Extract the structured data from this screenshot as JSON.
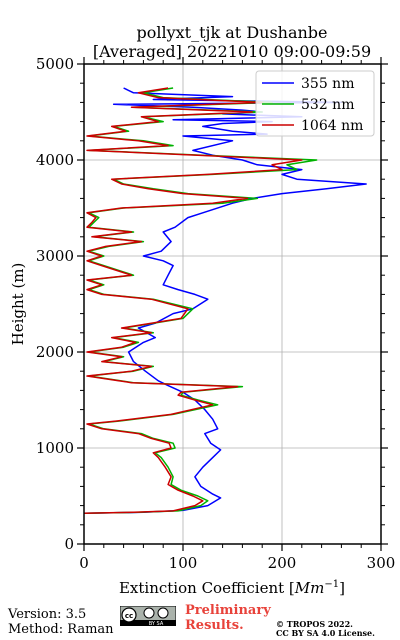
{
  "chart_data": {
    "type": "line",
    "title_line1": "pollyxt_tjk at Dushanbe",
    "title_line2": "[Averaged] 20221010 09:00-09:59",
    "xlabel": "Extinction Coefficient [",
    "xlabel_unit": "Mm",
    "xlabel_exp": "−1",
    "xlabel_close": "]",
    "ylabel": "Height (m)",
    "xlim": [
      0,
      300
    ],
    "ylim": [
      0,
      5000
    ],
    "xticks": [
      "0",
      "100",
      "200",
      "300"
    ],
    "yticks": [
      "0",
      "1000",
      "2000",
      "3000",
      "4000",
      "5000"
    ],
    "grid": true,
    "legend_position": "top-right",
    "series": [
      {
        "name": "355 nm",
        "color": "#0000ff",
        "points": [
          [
            0,
            320
          ],
          [
            60,
            330
          ],
          [
            100,
            350
          ],
          [
            125,
            400
          ],
          [
            138,
            480
          ],
          [
            130,
            520
          ],
          [
            118,
            600
          ],
          [
            112,
            700
          ],
          [
            120,
            800
          ],
          [
            130,
            900
          ],
          [
            138,
            980
          ],
          [
            128,
            1050
          ],
          [
            122,
            1150
          ],
          [
            135,
            1200
          ],
          [
            130,
            1300
          ],
          [
            122,
            1400
          ],
          [
            112,
            1500
          ],
          [
            100,
            1580
          ],
          [
            85,
            1650
          ],
          [
            75,
            1700
          ],
          [
            62,
            1800
          ],
          [
            50,
            1900
          ],
          [
            45,
            2000
          ],
          [
            60,
            2100
          ],
          [
            72,
            2150
          ],
          [
            55,
            2250
          ],
          [
            72,
            2300
          ],
          [
            90,
            2400
          ],
          [
            110,
            2450
          ],
          [
            125,
            2550
          ],
          [
            112,
            2600
          ],
          [
            95,
            2650
          ],
          [
            80,
            2700
          ],
          [
            85,
            2800
          ],
          [
            90,
            2900
          ],
          [
            80,
            2950
          ],
          [
            60,
            3000
          ],
          [
            78,
            3050
          ],
          [
            88,
            3150
          ],
          [
            80,
            3250
          ],
          [
            92,
            3300
          ],
          [
            105,
            3400
          ],
          [
            120,
            3450
          ],
          [
            150,
            3550
          ],
          [
            170,
            3600
          ],
          [
            200,
            3650
          ],
          [
            245,
            3700
          ],
          [
            285,
            3750
          ],
          [
            215,
            3800
          ],
          [
            200,
            3850
          ],
          [
            220,
            3900
          ],
          [
            175,
            3950
          ],
          [
            160,
            4000
          ],
          [
            130,
            4050
          ],
          [
            110,
            4100
          ],
          [
            150,
            4200
          ],
          [
            100,
            4250
          ],
          [
            185,
            4270
          ],
          [
            150,
            4300
          ],
          [
            120,
            4350
          ],
          [
            140,
            4380
          ],
          [
            190,
            4400
          ],
          [
            90,
            4420
          ],
          [
            220,
            4450
          ],
          [
            140,
            4480
          ],
          [
            180,
            4500
          ],
          [
            160,
            4520
          ],
          [
            110,
            4550
          ],
          [
            30,
            4580
          ],
          [
            260,
            4600
          ],
          [
            70,
            4630
          ],
          [
            150,
            4660
          ],
          [
            50,
            4700
          ],
          [
            40,
            4750
          ]
        ]
      },
      {
        "name": "532 nm",
        "color": "#00b200",
        "points": [
          [
            0,
            320
          ],
          [
            55,
            330
          ],
          [
            95,
            345
          ],
          [
            118,
            400
          ],
          [
            125,
            450
          ],
          [
            115,
            500
          ],
          [
            98,
            560
          ],
          [
            88,
            620
          ],
          [
            90,
            700
          ],
          [
            85,
            800
          ],
          [
            78,
            900
          ],
          [
            72,
            950
          ],
          [
            92,
            1000
          ],
          [
            90,
            1050
          ],
          [
            70,
            1100
          ],
          [
            58,
            1150
          ],
          [
            20,
            1200
          ],
          [
            5,
            1250
          ],
          [
            35,
            1280
          ],
          [
            90,
            1350
          ],
          [
            135,
            1450
          ],
          [
            115,
            1500
          ],
          [
            98,
            1550
          ],
          [
            100,
            1580
          ],
          [
            160,
            1640
          ],
          [
            50,
            1680
          ],
          [
            5,
            1750
          ],
          [
            50,
            1800
          ],
          [
            70,
            1850
          ],
          [
            20,
            1900
          ],
          [
            40,
            1950
          ],
          [
            5,
            2000
          ],
          [
            40,
            2050
          ],
          [
            55,
            2100
          ],
          [
            30,
            2150
          ],
          [
            70,
            2200
          ],
          [
            40,
            2250
          ],
          [
            70,
            2300
          ],
          [
            100,
            2350
          ],
          [
            110,
            2450
          ],
          [
            70,
            2550
          ],
          [
            20,
            2600
          ],
          [
            5,
            2650
          ],
          [
            20,
            2700
          ],
          [
            5,
            2750
          ],
          [
            50,
            2800
          ],
          [
            20,
            2900
          ],
          [
            5,
            2950
          ],
          [
            20,
            3000
          ],
          [
            5,
            3050
          ],
          [
            25,
            3100
          ],
          [
            60,
            3150
          ],
          [
            10,
            3200
          ],
          [
            50,
            3250
          ],
          [
            5,
            3300
          ],
          [
            10,
            3350
          ],
          [
            15,
            3400
          ],
          [
            5,
            3450
          ],
          [
            40,
            3500
          ],
          [
            140,
            3550
          ],
          [
            175,
            3600
          ],
          [
            105,
            3650
          ],
          [
            70,
            3700
          ],
          [
            40,
            3750
          ],
          [
            30,
            3800
          ],
          [
            130,
            3850
          ],
          [
            215,
            3900
          ],
          [
            205,
            3950
          ],
          [
            235,
            4000
          ],
          [
            120,
            4050
          ],
          [
            5,
            4100
          ],
          [
            90,
            4150
          ],
          [
            60,
            4200
          ],
          [
            5,
            4250
          ],
          [
            45,
            4300
          ],
          [
            30,
            4350
          ],
          [
            80,
            4400
          ],
          [
            60,
            4450
          ],
          [
            180,
            4500
          ],
          [
            50,
            4550
          ],
          [
            190,
            4600
          ],
          [
            80,
            4650
          ],
          [
            60,
            4700
          ],
          [
            90,
            4750
          ]
        ]
      },
      {
        "name": "1064 nm",
        "color": "#cc0000",
        "points": [
          [
            0,
            320
          ],
          [
            50,
            330
          ],
          [
            90,
            345
          ],
          [
            112,
            400
          ],
          [
            120,
            450
          ],
          [
            110,
            500
          ],
          [
            95,
            560
          ],
          [
            85,
            620
          ],
          [
            88,
            700
          ],
          [
            82,
            800
          ],
          [
            75,
            900
          ],
          [
            70,
            950
          ],
          [
            88,
            1000
          ],
          [
            86,
            1050
          ],
          [
            68,
            1100
          ],
          [
            55,
            1150
          ],
          [
            18,
            1200
          ],
          [
            3,
            1250
          ],
          [
            32,
            1280
          ],
          [
            88,
            1350
          ],
          [
            130,
            1450
          ],
          [
            112,
            1500
          ],
          [
            95,
            1550
          ],
          [
            98,
            1580
          ],
          [
            155,
            1640
          ],
          [
            48,
            1680
          ],
          [
            3,
            1750
          ],
          [
            48,
            1800
          ],
          [
            68,
            1850
          ],
          [
            18,
            1900
          ],
          [
            38,
            1950
          ],
          [
            3,
            2000
          ],
          [
            38,
            2050
          ],
          [
            52,
            2100
          ],
          [
            28,
            2150
          ],
          [
            68,
            2200
          ],
          [
            38,
            2250
          ],
          [
            68,
            2300
          ],
          [
            98,
            2350
          ],
          [
            105,
            2450
          ],
          [
            68,
            2550
          ],
          [
            18,
            2600
          ],
          [
            3,
            2650
          ],
          [
            18,
            2700
          ],
          [
            3,
            2750
          ],
          [
            48,
            2800
          ],
          [
            18,
            2900
          ],
          [
            3,
            2950
          ],
          [
            18,
            3000
          ],
          [
            3,
            3050
          ],
          [
            22,
            3100
          ],
          [
            58,
            3150
          ],
          [
            8,
            3200
          ],
          [
            48,
            3250
          ],
          [
            3,
            3300
          ],
          [
            8,
            3350
          ],
          [
            12,
            3400
          ],
          [
            3,
            3450
          ],
          [
            38,
            3500
          ],
          [
            130,
            3550
          ],
          [
            165,
            3600
          ],
          [
            100,
            3650
          ],
          [
            65,
            3700
          ],
          [
            38,
            3750
          ],
          [
            28,
            3800
          ],
          [
            125,
            3850
          ],
          [
            200,
            3900
          ],
          [
            190,
            3950
          ],
          [
            220,
            4000
          ],
          [
            115,
            4050
          ],
          [
            3,
            4100
          ],
          [
            85,
            4150
          ],
          [
            55,
            4200
          ],
          [
            3,
            4250
          ],
          [
            42,
            4300
          ],
          [
            28,
            4350
          ],
          [
            75,
            4400
          ],
          [
            58,
            4450
          ],
          [
            170,
            4500
          ],
          [
            48,
            4550
          ],
          [
            180,
            4600
          ],
          [
            75,
            4650
          ],
          [
            55,
            4700
          ],
          [
            85,
            4750
          ]
        ]
      }
    ]
  },
  "footer": {
    "version": "Version: 3.5",
    "method": "Method: Raman",
    "prelim_line1": "Preliminary",
    "prelim_line2": "Results.",
    "copyright_line1": "© TROPOS 2022.",
    "copyright_line2": "CC BY SA 4.0 License.",
    "license_badge": "cc by sa"
  }
}
